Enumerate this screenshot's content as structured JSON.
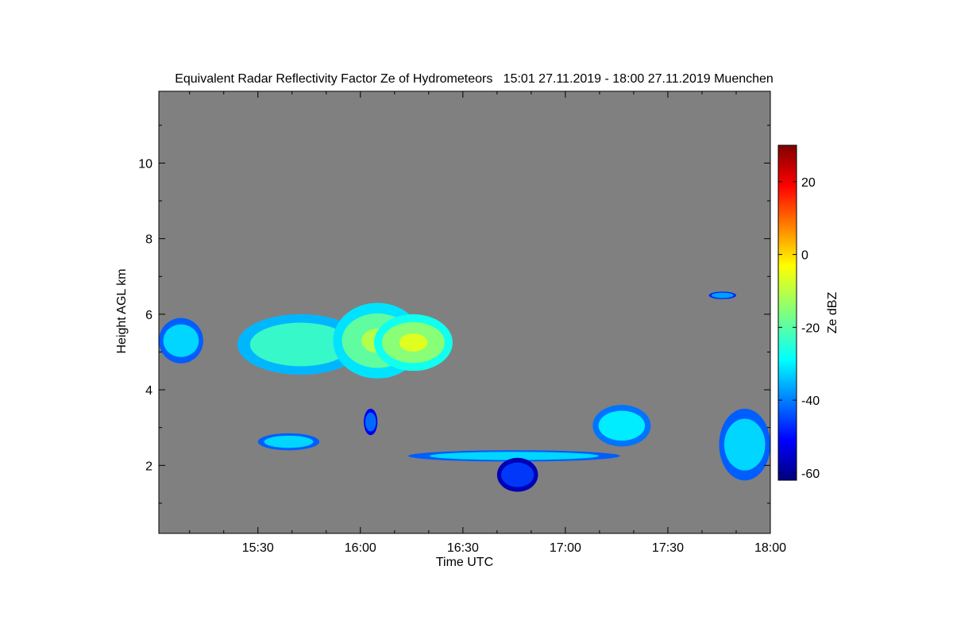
{
  "chart_data": {
    "type": "heatmap",
    "title": "Equivalent Radar Reflectivity Factor Ze of Hydrometeors   15:01 27.11.2019 - 18:00 27.11.2019 Muenchen",
    "xlabel": "Time UTC",
    "ylabel": "Height AGL km",
    "x_ticks": [
      "15:30",
      "16:00",
      "16:30",
      "17:00",
      "17:30",
      "18:00"
    ],
    "x_tick_values_min": [
      30,
      60,
      90,
      120,
      150,
      180
    ],
    "xlim_min": [
      1,
      180
    ],
    "y_ticks": [
      2,
      4,
      6,
      8,
      10
    ],
    "ylim": [
      0.2,
      11.9
    ],
    "background_color": "#808080",
    "colorbar": {
      "label": "Ze dBZ",
      "ticks": [
        -60,
        -40,
        -20,
        0,
        20
      ],
      "range": [
        -62,
        30
      ],
      "colormap": "jet"
    },
    "echo_regions": [
      {
        "t0": 1,
        "t1": 14,
        "h0": 4.7,
        "h1": 5.9,
        "ze": -30
      },
      {
        "t0": 24,
        "t1": 61,
        "h0": 4.4,
        "h1": 6.0,
        "ze": -22
      },
      {
        "t0": 52,
        "t1": 78,
        "h0": 4.3,
        "h1": 6.3,
        "ze": -18
      },
      {
        "t0": 64,
        "t1": 87,
        "h0": 4.5,
        "h1": 6.0,
        "ze": -14
      },
      {
        "t0": 30,
        "t1": 48,
        "h0": 2.4,
        "h1": 2.85,
        "ze": -30
      },
      {
        "t0": 61,
        "t1": 65,
        "h0": 2.8,
        "h1": 3.5,
        "ze": -40
      },
      {
        "t0": 74,
        "t1": 136,
        "h0": 2.1,
        "h1": 2.4,
        "ze": -30
      },
      {
        "t0": 100,
        "t1": 112,
        "h0": 1.3,
        "h1": 2.2,
        "ze": -45
      },
      {
        "t0": 128,
        "t1": 145,
        "h0": 2.5,
        "h1": 3.6,
        "ze": -28
      },
      {
        "t0": 165,
        "t1": 180,
        "h0": 1.6,
        "h1": 3.5,
        "ze": -30
      },
      {
        "t0": 162,
        "t1": 170,
        "h0": 6.4,
        "h1": 6.6,
        "ze": -35
      }
    ]
  }
}
